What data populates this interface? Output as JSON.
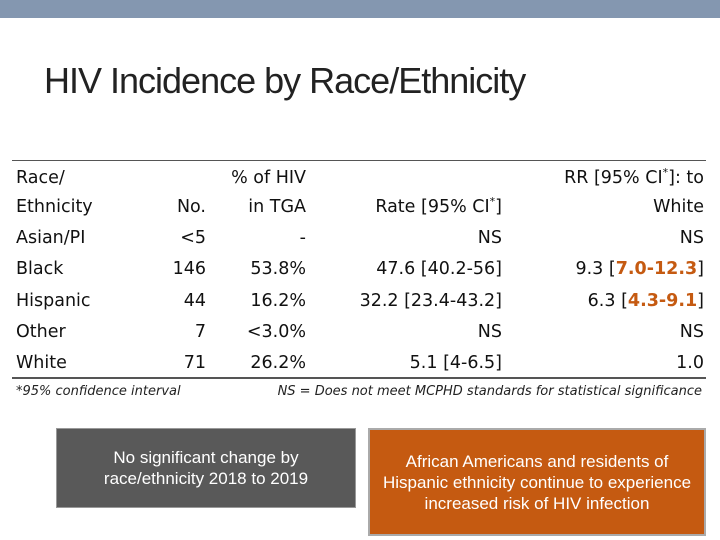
{
  "title": "HIV Incidence by Race/Ethnicity",
  "table": {
    "headers": [
      {
        "lines": [
          "Race/",
          "Ethnicity"
        ]
      },
      {
        "lines": [
          "No."
        ]
      },
      {
        "lines": [
          "% of HIV",
          "in TGA"
        ]
      },
      {
        "lines": [
          {
            "before": "Rate [95% CI",
            "sup": "*",
            "after": "]"
          }
        ]
      },
      {
        "lines": [
          {
            "before": "RR [95% CI",
            "sup": "*",
            "after": "]: to"
          },
          "White"
        ]
      }
    ],
    "rows": [
      [
        "Asian/PI",
        "<5",
        "-",
        "NS",
        "NS"
      ],
      [
        "Black",
        "146",
        "53.8%",
        "47.6 [40.2-56]",
        {
          "before": "9.3 [",
          "highlight": "7.0-12.3",
          "after": "]"
        }
      ],
      [
        "Hispanic",
        "44",
        "16.2%",
        "32.2 [23.4-43.2]",
        {
          "before": "6.3 [",
          "highlight": "4.3-9.1",
          "after": "]"
        }
      ],
      [
        "Other",
        "7",
        "<3.0%",
        "NS",
        "NS"
      ],
      [
        "White",
        "71",
        "26.2%",
        "5.1 [4-6.5]",
        "1.0"
      ]
    ],
    "footnote_left": "*95% confidence interval",
    "footnote_right": "NS = Does not meet MCPHD standards for statistical significance"
  },
  "box_left": "No significant change by race/ethnicity 2018 to 2019",
  "box_right": "African Americans and residents of Hispanic ethnicity continue to experience increased risk of HIV infection"
}
